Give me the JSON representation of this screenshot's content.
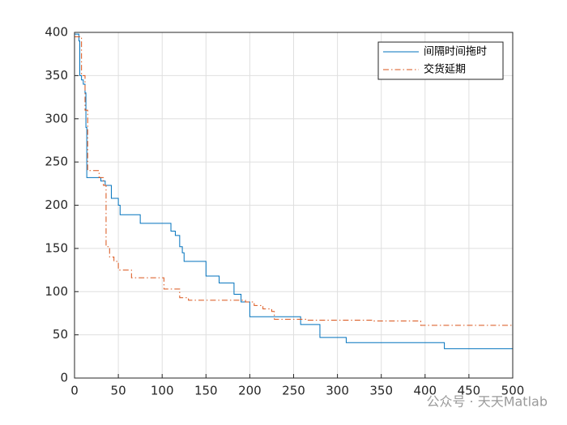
{
  "chart_data": {
    "type": "line",
    "grid": true,
    "legend": "upper right",
    "watermark": "公众号 · 天天Matlab",
    "xlim": [
      0,
      500
    ],
    "xticks": [
      0,
      50,
      100,
      150,
      200,
      250,
      300,
      350,
      400,
      450,
      500
    ],
    "ylim": [
      0,
      400
    ],
    "yticks": [
      0,
      50,
      100,
      150,
      200,
      250,
      300,
      350,
      400
    ],
    "series": [
      {
        "name": "间隔时间拖时",
        "color": "#0072bd",
        "dash": "solid",
        "x": [
          0,
          5,
          5,
          6,
          6,
          8,
          8,
          10,
          10,
          12,
          12,
          13,
          13,
          14,
          14,
          30,
          30,
          35,
          35,
          42,
          42,
          50,
          50,
          52,
          52,
          75,
          75,
          110,
          110,
          115,
          115,
          120,
          120,
          123,
          123,
          125,
          125,
          150,
          150,
          165,
          165,
          182,
          182,
          190,
          190,
          200,
          200,
          258,
          258,
          280,
          280,
          310,
          310,
          422,
          422,
          500
        ],
        "values": [
          398,
          398,
          390,
          390,
          350,
          350,
          345,
          345,
          340,
          340,
          330,
          330,
          290,
          290,
          232,
          232,
          228,
          228,
          223,
          223,
          208,
          208,
          200,
          200,
          189,
          189,
          179,
          179,
          170,
          170,
          165,
          165,
          152,
          152,
          145,
          145,
          135,
          135,
          118,
          118,
          110,
          110,
          97,
          97,
          88,
          88,
          71,
          71,
          62,
          62,
          47,
          47,
          41,
          41,
          34,
          34
        ]
      },
      {
        "name": "交货延期",
        "color": "#d95319",
        "dash": "dashdot",
        "x": [
          0,
          8,
          8,
          12,
          12,
          15,
          15,
          28,
          28,
          33,
          33,
          36,
          36,
          40,
          40,
          45,
          45,
          50,
          50,
          65,
          65,
          102,
          102,
          120,
          120,
          130,
          130,
          195,
          195,
          205,
          205,
          215,
          215,
          225,
          225,
          228,
          228,
          265,
          265,
          340,
          340,
          395,
          395,
          500
        ],
        "values": [
          395,
          395,
          350,
          350,
          310,
          310,
          240,
          240,
          232,
          232,
          223,
          223,
          152,
          152,
          140,
          140,
          135,
          135,
          125,
          125,
          116,
          116,
          103,
          103,
          93,
          93,
          90,
          90,
          88,
          88,
          84,
          84,
          80,
          80,
          77,
          77,
          68,
          68,
          67,
          67,
          66,
          66,
          61,
          61
        ]
      }
    ]
  }
}
